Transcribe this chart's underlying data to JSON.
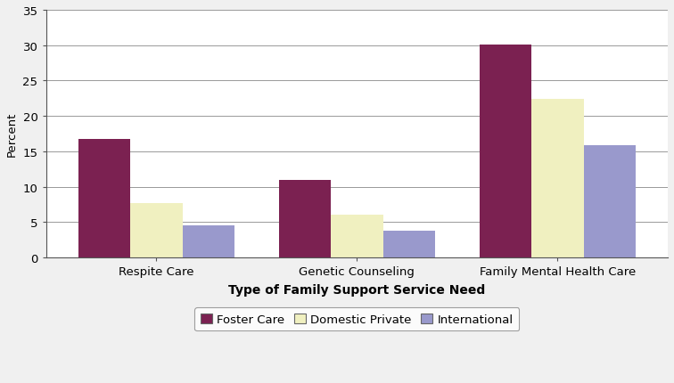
{
  "categories": [
    "Respite Care",
    "Genetic Counseling",
    "Family Mental Health Care"
  ],
  "series": {
    "Foster Care": [
      16.7,
      11.0,
      30.1
    ],
    "Domestic Private": [
      7.7,
      6.1,
      22.4
    ],
    "International": [
      4.5,
      3.8,
      15.9
    ]
  },
  "colors": {
    "Foster Care": "#7b2151",
    "Domestic Private": "#f0f0c0",
    "International": "#9999cc"
  },
  "legend_labels": [
    "Foster Care",
    "Domestic Private",
    "International"
  ],
  "xlabel": "Type of Family Support Service Need",
  "ylabel": "Percent",
  "ylim": [
    0,
    35
  ],
  "yticks": [
    0,
    5,
    10,
    15,
    20,
    25,
    30,
    35
  ],
  "bar_width": 0.26,
  "background_color": "#f0f0f0",
  "plot_bg_color": "#ffffff",
  "grid_color": "#999999",
  "legend_border_color": "#888888",
  "spine_color": "#555555"
}
